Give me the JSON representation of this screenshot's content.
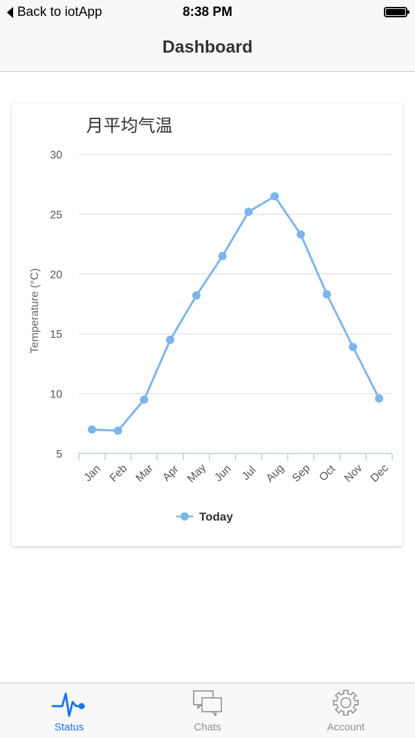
{
  "status_bar": {
    "back_label": "Back to iotApp",
    "time": "8:38 PM"
  },
  "nav": {
    "title": "Dashboard"
  },
  "colors": {
    "series": "#7cb5ec",
    "active_tab": "#1a73e8",
    "inactive_tab": "#8e8e93"
  },
  "chart_data": {
    "type": "line",
    "title": "月平均气温",
    "xlabel": "",
    "ylabel": "Temperature (°C)",
    "categories": [
      "Jan",
      "Feb",
      "Mar",
      "Apr",
      "May",
      "Jun",
      "Jul",
      "Aug",
      "Sep",
      "Oct",
      "Nov",
      "Dec"
    ],
    "ylim": [
      5,
      30
    ],
    "yticks": [
      5,
      10,
      15,
      20,
      25,
      30
    ],
    "grid": true,
    "legend_position": "bottom-center",
    "series": [
      {
        "name": "Today",
        "values": [
          7.0,
          6.9,
          9.5,
          14.5,
          18.2,
          21.5,
          25.2,
          26.5,
          23.3,
          18.3,
          13.9,
          9.6
        ]
      }
    ]
  },
  "tabs": [
    {
      "label": "Status",
      "icon": "pulse-icon",
      "active": true
    },
    {
      "label": "Chats",
      "icon": "chat-bubbles-icon",
      "active": false
    },
    {
      "label": "Account",
      "icon": "gear-icon",
      "active": false
    }
  ]
}
